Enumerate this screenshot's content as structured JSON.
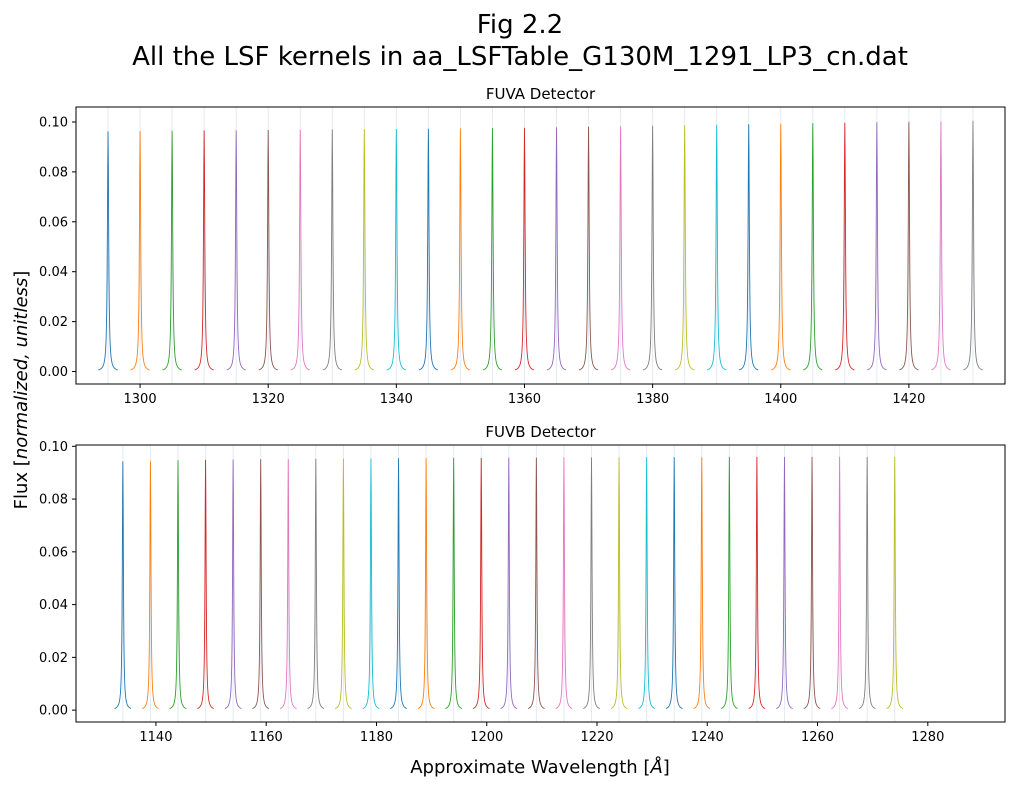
{
  "figure": {
    "title_line1": "Fig 2.2",
    "title_line2": "All the LSF kernels in aa_LSFTable_G130M_1291_LP3_cn.dat",
    "ylabel_prefix": "Flux [",
    "ylabel_italic": "normalized, unitless",
    "ylabel_suffix": "]",
    "xlabel_prefix": "Approximate Wavelength [",
    "xlabel_unit": "Å",
    "xlabel_suffix": "]"
  },
  "palette": [
    "#1f77b4",
    "#ff7f0e",
    "#2ca02c",
    "#d62728",
    "#9467bd",
    "#8c564b",
    "#e377c2",
    "#7f7f7f",
    "#bcbd22",
    "#17becf"
  ],
  "chart_data": [
    {
      "type": "line",
      "title": "FUVA Detector",
      "xlim": [
        1290,
        1435
      ],
      "ylim": [
        -0.005,
        0.106
      ],
      "xticks": [
        1300,
        1320,
        1340,
        1360,
        1380,
        1400,
        1420
      ],
      "yticks": [
        "0.00",
        "0.02",
        "0.04",
        "0.06",
        "0.08",
        "0.10"
      ],
      "grid": "vertical lines at kernel centers",
      "kernel_centers": [
        1295,
        1300,
        1305,
        1310,
        1315,
        1320,
        1325,
        1330,
        1335,
        1340,
        1345,
        1350,
        1355,
        1360,
        1365,
        1370,
        1375,
        1380,
        1385,
        1390,
        1395,
        1400,
        1405,
        1410,
        1415,
        1420,
        1425,
        1430
      ],
      "peak_values": [
        0.0963,
        0.0964,
        0.0965,
        0.0966,
        0.0967,
        0.0968,
        0.0969,
        0.097,
        0.0971,
        0.0972,
        0.0973,
        0.0974,
        0.0976,
        0.0977,
        0.0979,
        0.0981,
        0.0983,
        0.0985,
        0.0987,
        0.0989,
        0.0991,
        0.0993,
        0.0995,
        0.0997,
        0.0999,
        0.1001,
        0.1003,
        0.1005
      ]
    },
    {
      "type": "line",
      "title": "FUVB Detector",
      "xlim": [
        1125.5,
        1294
      ],
      "ylim": [
        -0.0045,
        0.1005
      ],
      "xticks": [
        1140,
        1160,
        1180,
        1200,
        1220,
        1240,
        1260,
        1280
      ],
      "yticks": [
        "0.00",
        "0.02",
        "0.04",
        "0.06",
        "0.08",
        "0.10"
      ],
      "grid": "vertical lines at kernel centers",
      "kernel_centers": [
        1134,
        1139,
        1144,
        1149,
        1154,
        1159,
        1164,
        1169,
        1174,
        1179,
        1184,
        1189,
        1194,
        1199,
        1204,
        1209,
        1214,
        1219,
        1224,
        1229,
        1234,
        1239,
        1244,
        1249,
        1254,
        1259,
        1264,
        1269,
        1274
      ],
      "peak_values": [
        0.0943,
        0.0945,
        0.0947,
        0.0949,
        0.095,
        0.0951,
        0.0952,
        0.0953,
        0.0954,
        0.0954,
        0.0955,
        0.0955,
        0.0956,
        0.0956,
        0.0957,
        0.0957,
        0.0958,
        0.0958,
        0.0958,
        0.0959,
        0.0959,
        0.0959,
        0.096,
        0.096,
        0.096,
        0.096,
        0.096,
        0.096,
        0.096
      ]
    }
  ]
}
